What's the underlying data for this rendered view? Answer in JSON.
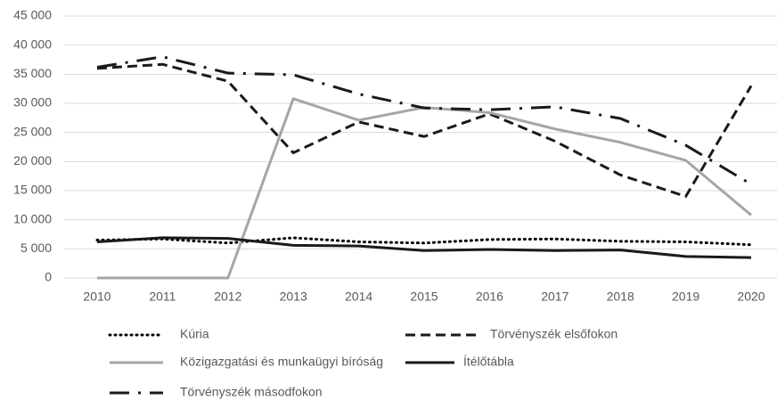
{
  "chart_data": {
    "type": "line",
    "categories": [
      "2010",
      "2011",
      "2012",
      "2013",
      "2014",
      "2015",
      "2016",
      "2017",
      "2018",
      "2019",
      "2020"
    ],
    "series": [
      {
        "name": "Kúria",
        "color": "#000000",
        "style": "dotted",
        "values": [
          6500,
          6700,
          6000,
          6900,
          6200,
          6000,
          6600,
          6700,
          6300,
          6200,
          5700
        ]
      },
      {
        "name": "Törvényszék elsőfokon",
        "color": "#1a1a1a",
        "style": "dashed",
        "values": [
          36000,
          36700,
          33800,
          21500,
          26800,
          24300,
          28200,
          23500,
          17700,
          14000,
          33000
        ]
      },
      {
        "name": "Közigazgatási és munkaügyi bíróság",
        "color": "#a6a6a6",
        "style": "solid",
        "values": [
          0,
          0,
          0,
          30800,
          27100,
          29300,
          28400,
          25600,
          23300,
          20200,
          10800
        ]
      },
      {
        "name": "Ítélőtábla",
        "color": "#1a1a1a",
        "style": "solid",
        "values": [
          6200,
          6900,
          6800,
          5600,
          5500,
          4700,
          4900,
          4700,
          4800,
          3700,
          3500
        ]
      },
      {
        "name": "Törvényszék másodfokon",
        "color": "#1a1a1a",
        "style": "dash-dot",
        "values": [
          36200,
          38000,
          35200,
          34900,
          31600,
          29200,
          28900,
          29400,
          27400,
          22800,
          16100
        ]
      }
    ],
    "ylim": [
      0,
      45000
    ],
    "yticks": [
      0,
      {
        "value": 5000,
        "label": "5 000"
      },
      {
        "value": 10000,
        "label": "10 000"
      },
      {
        "value": 15000,
        "label": "15 000"
      },
      {
        "value": 20000,
        "label": "20 000"
      },
      {
        "value": 25000,
        "label": "25 000"
      },
      {
        "value": 30000,
        "label": "30 000"
      },
      {
        "value": 35000,
        "label": "35 000"
      },
      {
        "value": 40000,
        "label": "40 000"
      },
      {
        "value": 45000,
        "label": "45 000"
      }
    ],
    "grid": true,
    "legend": "bottom"
  }
}
